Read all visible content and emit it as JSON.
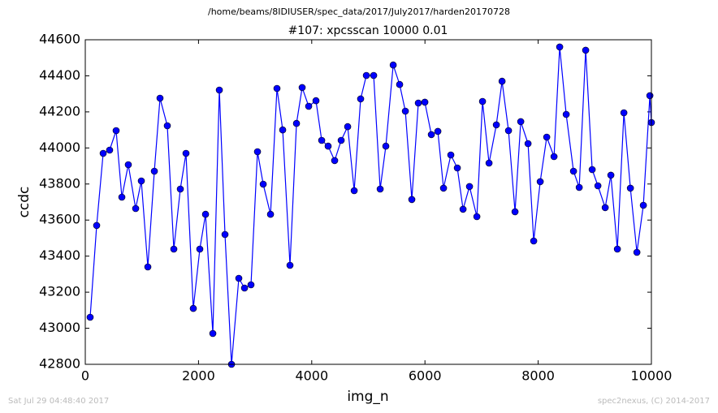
{
  "chart_data": {
    "type": "line",
    "suptitle": "/home/beams/8IDIUSER/spec_data/2017/July2017/harden20170728",
    "title": "#107: xpcsscan 10000 0.01",
    "xlabel": "img_n",
    "ylabel": "ccdc",
    "footer_left": "Sat Jul 29 04:48:40 2017",
    "footer_right": "spec2nexus, (C) 2014-2017",
    "xlim": [
      0,
      10000
    ],
    "xticks": [
      0,
      2000,
      4000,
      6000,
      8000,
      10000
    ],
    "ylim": [
      42800,
      44600
    ],
    "yticks": [
      42800,
      43000,
      43200,
      43400,
      43600,
      43800,
      44000,
      44200,
      44400,
      44600
    ],
    "series": [
      {
        "color": "#0000ff",
        "x": [
          86,
          201,
          316,
          430,
          545,
          646,
          760,
          890,
          990,
          1105,
          1220,
          1320,
          1449,
          1564,
          1679,
          1779,
          1908,
          2023,
          2124,
          2253,
          2368,
          2468,
          2583,
          2712,
          2813,
          2927,
          3042,
          3143,
          3272,
          3386,
          3487,
          3616,
          3731,
          3831,
          3946,
          4075,
          4176,
          4290,
          4405,
          4520,
          4635,
          4750,
          4864,
          4965,
          5094,
          5209,
          5309,
          5439,
          5553,
          5654,
          5768,
          5883,
          5998,
          6113,
          6228,
          6328,
          6457,
          6572,
          6673,
          6787,
          6917,
          7017,
          7132,
          7261,
          7362,
          7476,
          7591,
          7692,
          7821,
          7921,
          8036,
          8151,
          8280,
          8380,
          8495,
          8624,
          8725,
          8839,
          8954,
          9055,
          9184,
          9284,
          9399,
          9514,
          9629,
          9744,
          9858,
          9973,
          10000
        ],
        "values": [
          43061,
          43570,
          43970,
          43988,
          44096,
          43727,
          43907,
          43664,
          43817,
          43340,
          43871,
          44276,
          44123,
          43439,
          43772,
          43970,
          43110,
          43439,
          43632,
          42971,
          44321,
          43520,
          42800,
          43277,
          43223,
          43241,
          43979,
          43799,
          43632,
          44330,
          44100,
          43349,
          44136,
          44335,
          44231,
          44262,
          44042,
          44010,
          43930,
          44042,
          44118,
          43763,
          44272,
          44402,
          44402,
          43772,
          44010,
          44460,
          44352,
          44204,
          43714,
          44249,
          44254,
          44074,
          44092,
          43777,
          43961,
          43889,
          43660,
          43786,
          43619,
          44258,
          43916,
          44128,
          44370,
          44096,
          43646,
          44146,
          44024,
          43484,
          43813,
          44060,
          43952,
          44560,
          44186,
          43871,
          43781,
          44542,
          43880,
          43790,
          43669,
          43849,
          43439,
          44195,
          43777,
          43421,
          43682,
          44290,
          44141
        ]
      }
    ]
  }
}
